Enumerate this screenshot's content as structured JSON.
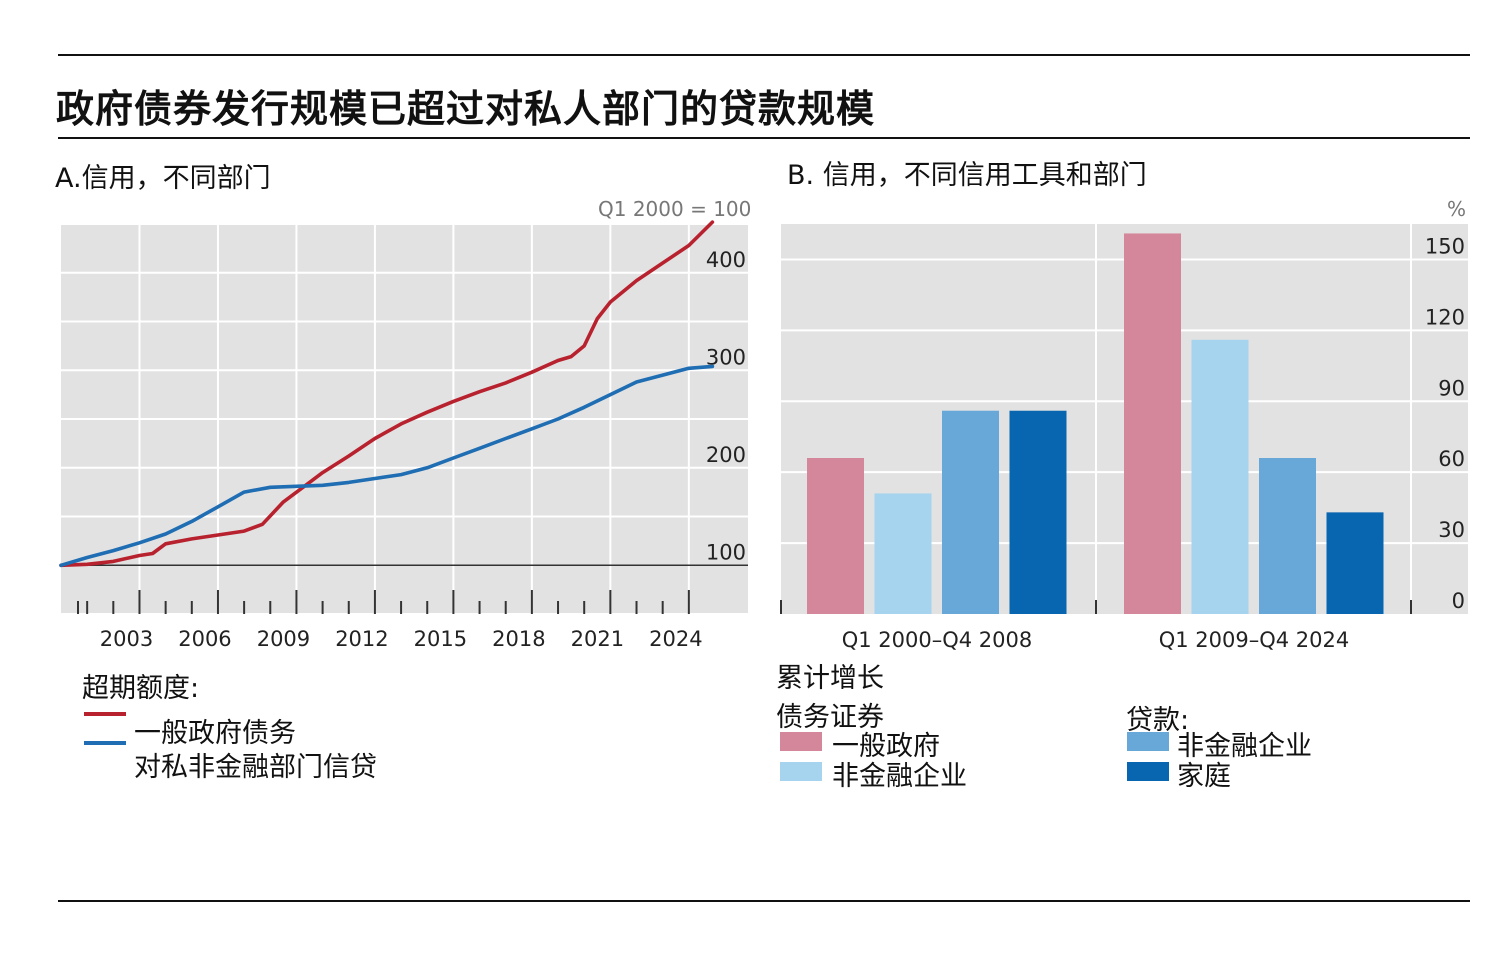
{
  "title": "政府债券发行规模已超过对私人部门的贷款规模",
  "panel_a": {
    "title": "A.信用，不同部门",
    "unit": "Q1 2000 = 100",
    "legend_title": "超期额度:",
    "legend": [
      {
        "label": "一般政府债务",
        "color": "#b8222e"
      },
      {
        "label": "对私非金融部门信贷",
        "color": "#1f6db3"
      }
    ]
  },
  "panel_b": {
    "title": "B. 信用，不同信用工具和部门",
    "unit": "%",
    "subtitle": "累计增长",
    "group1_title": "债务证券",
    "group2_title": "贷款:",
    "legend": [
      {
        "label": "一般政府",
        "color": "#d4869a"
      },
      {
        "label": "非金融企业",
        "color": "#a6d3ee"
      },
      {
        "label": "非金融企业",
        "color": "#67a8d8"
      },
      {
        "label": "家庭",
        "color": "#0865b0"
      }
    ]
  },
  "chart_data": [
    {
      "type": "line",
      "title": "A.信用，不同部门",
      "unit_label": "Q1 2000 = 100",
      "ylim": [
        50,
        450
      ],
      "xlim": [
        2000,
        2025
      ],
      "yticks": [
        100,
        200,
        300,
        400
      ],
      "xticks": [
        2003,
        2006,
        2009,
        2012,
        2015,
        2018,
        2021,
        2024
      ],
      "series": [
        {
          "name": "一般政府债务",
          "color": "#b8222e",
          "x": [
            2000,
            2001,
            2002,
            2003,
            2003.5,
            2004,
            2005,
            2006,
            2007,
            2007.7,
            2008.5,
            2009.5,
            2010,
            2011,
            2012,
            2013,
            2014,
            2015,
            2016,
            2017,
            2018,
            2019,
            2019.5,
            2020,
            2020.5,
            2021,
            2022,
            2023,
            2024,
            2024.9
          ],
          "values": [
            100,
            101,
            104,
            110,
            112,
            122,
            127,
            131,
            135,
            142,
            165,
            185,
            195,
            212,
            230,
            245,
            257,
            268,
            278,
            287,
            298,
            310,
            314,
            325,
            353,
            370,
            392,
            410,
            428,
            452
          ]
        },
        {
          "name": "对私非金融部门信贷",
          "color": "#1f6db3",
          "x": [
            2000,
            2001,
            2002,
            2003,
            2004,
            2005,
            2006,
            2007,
            2008,
            2009,
            2010,
            2011,
            2012,
            2013,
            2014,
            2015,
            2016,
            2017,
            2018,
            2019,
            2020,
            2021,
            2022,
            2023,
            2024,
            2024.9
          ],
          "values": [
            100,
            108,
            115,
            123,
            132,
            145,
            160,
            175,
            180,
            181,
            182,
            185,
            189,
            193,
            200,
            210,
            220,
            230,
            240,
            250,
            262,
            275,
            288,
            295,
            302,
            304
          ]
        }
      ]
    },
    {
      "type": "bar",
      "title": "B. 信用，不同信用工具和部门",
      "unit_label": "%",
      "ylabel": "累计增长",
      "ylim": [
        0,
        165
      ],
      "yticks": [
        0,
        30,
        60,
        90,
        120,
        150
      ],
      "categories": [
        "Q1 2000–Q4 2008",
        "Q1 2009–Q4 2024"
      ],
      "series": [
        {
          "name": "债务证券: 一般政府",
          "color": "#d4869a",
          "values": [
            66,
            161
          ]
        },
        {
          "name": "债务证券: 非金融企业",
          "color": "#a6d3ee",
          "values": [
            51,
            116
          ]
        },
        {
          "name": "贷款: 非金融企业",
          "color": "#67a8d8",
          "values": [
            86,
            66
          ]
        },
        {
          "name": "贷款: 家庭",
          "color": "#0865b0",
          "values": [
            86,
            43
          ]
        }
      ]
    }
  ]
}
